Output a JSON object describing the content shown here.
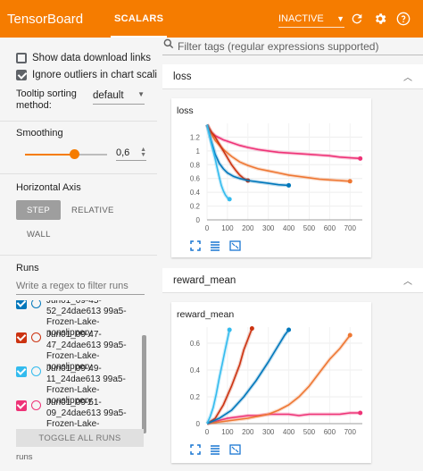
{
  "app": {
    "title": "TensorBoard"
  },
  "tabs": [
    {
      "label": "SCALARS"
    }
  ],
  "header": {
    "status": "INACTIVE",
    "accent": "#f57c00"
  },
  "sidebar": {
    "show_download": "Show data download links",
    "ignore_outliers": "Ignore outliers in chart scaling",
    "tooltip_label": "Tooltip sorting method:",
    "tooltip_value": "default",
    "smoothing_label": "Smoothing",
    "smoothing_value": "0,6",
    "smoothing_fraction": 0.6,
    "horizontal_axis_label": "Horizontal Axis",
    "axis_step": "STEP",
    "axis_relative": "RELATIVE",
    "axis_wall": "WALL",
    "runs_label": "Runs",
    "runs_filter_placeholder": "Write a regex to filter runs",
    "runs": [
      {
        "name": "Jun01_09-45-52_24dae613 99a5-Frozen-Lake-nonslippery",
        "color": "#0077bb",
        "checked": true
      },
      {
        "name": "Jun01_09-47-47_24dae613 99a5-Frozen-Lake-nonslippery",
        "color": "#cc3311",
        "checked": true
      },
      {
        "name": "Jun01_09-49-11_24dae613 99a5-Frozen-Lake-nonslippery",
        "color": "#33bbee",
        "checked": true
      },
      {
        "name": "Jun01_09-51-09_24dae613 99a5-Frozen-Lake-nonslippery",
        "color": "#ee3377",
        "checked": true
      }
    ],
    "toggle_all": "TOGGLE ALL RUNS",
    "runs_footer": "runs"
  },
  "main": {
    "search_placeholder": "Filter tags (regular expressions supported)",
    "categories": [
      {
        "label": "loss"
      },
      {
        "label": "reward_mean"
      }
    ]
  },
  "chart_data": [
    {
      "type": "line",
      "title": "loss",
      "xlabel": "",
      "ylabel": "",
      "xticks": [
        "0",
        "100",
        "200",
        "300",
        "400",
        "500",
        "600",
        "700"
      ],
      "yticks": [
        "0",
        "0.2",
        "0.4",
        "0.6",
        "0.8",
        "1",
        "1.2"
      ],
      "xlim": [
        0,
        760
      ],
      "ylim": [
        0,
        1.4
      ],
      "series": [
        {
          "color": "#ee3377",
          "x": [
            0,
            20,
            40,
            80,
            120,
            160,
            200,
            250,
            300,
            350,
            400,
            450,
            500,
            550,
            600,
            650,
            700,
            750
          ],
          "y": [
            1.38,
            1.27,
            1.22,
            1.16,
            1.12,
            1.08,
            1.05,
            1.02,
            1.0,
            0.98,
            0.97,
            0.96,
            0.95,
            0.94,
            0.93,
            0.91,
            0.9,
            0.89
          ]
        },
        {
          "color": "#ee7733",
          "x": [
            0,
            20,
            40,
            80,
            120,
            160,
            200,
            250,
            300,
            350,
            400,
            450,
            500,
            550,
            600,
            650,
            700
          ],
          "y": [
            1.38,
            1.25,
            1.15,
            1.02,
            0.92,
            0.84,
            0.79,
            0.74,
            0.71,
            0.68,
            0.65,
            0.63,
            0.61,
            0.59,
            0.58,
            0.57,
            0.56
          ]
        },
        {
          "color": "#cc3311",
          "x": [
            0,
            20,
            40,
            60,
            80,
            100,
            120,
            140,
            160,
            180,
            200
          ],
          "y": [
            1.38,
            1.28,
            1.2,
            1.1,
            1.0,
            0.9,
            0.8,
            0.72,
            0.65,
            0.6,
            0.57
          ]
        },
        {
          "color": "#0077bb",
          "x": [
            0,
            20,
            40,
            60,
            80,
            100,
            130,
            160,
            200,
            250,
            300,
            350,
            400
          ],
          "y": [
            1.38,
            1.15,
            0.95,
            0.82,
            0.74,
            0.68,
            0.63,
            0.6,
            0.57,
            0.55,
            0.53,
            0.51,
            0.5
          ]
        },
        {
          "color": "#33bbee",
          "x": [
            0,
            10,
            20,
            30,
            40,
            50,
            60,
            70,
            80,
            90,
            100,
            110
          ],
          "y": [
            1.38,
            1.25,
            1.12,
            1.0,
            0.88,
            0.75,
            0.62,
            0.5,
            0.42,
            0.36,
            0.32,
            0.3
          ]
        }
      ]
    },
    {
      "type": "line",
      "title": "reward_mean",
      "xlabel": "",
      "ylabel": "",
      "xticks": [
        "0",
        "100",
        "200",
        "300",
        "400",
        "500",
        "600",
        "700"
      ],
      "yticks": [
        "0",
        "0.2",
        "0.4",
        "0.6"
      ],
      "xlim": [
        0,
        760
      ],
      "ylim": [
        0,
        0.72
      ],
      "series": [
        {
          "color": "#ee3377",
          "x": [
            0,
            50,
            100,
            150,
            200,
            250,
            300,
            350,
            400,
            450,
            500,
            550,
            600,
            650,
            700,
            750
          ],
          "y": [
            0.0,
            0.02,
            0.04,
            0.05,
            0.06,
            0.06,
            0.07,
            0.07,
            0.07,
            0.06,
            0.07,
            0.07,
            0.07,
            0.07,
            0.08,
            0.08
          ]
        },
        {
          "color": "#ee7733",
          "x": [
            0,
            100,
            200,
            300,
            350,
            400,
            450,
            500,
            550,
            600,
            650,
            700
          ],
          "y": [
            0.0,
            0.02,
            0.04,
            0.07,
            0.1,
            0.14,
            0.2,
            0.28,
            0.38,
            0.48,
            0.56,
            0.66
          ]
        },
        {
          "color": "#cc3311",
          "x": [
            0,
            40,
            80,
            120,
            160,
            180,
            200,
            220
          ],
          "y": [
            0.0,
            0.04,
            0.14,
            0.28,
            0.44,
            0.55,
            0.63,
            0.71
          ]
        },
        {
          "color": "#0077bb",
          "x": [
            0,
            60,
            120,
            180,
            240,
            300,
            340,
            380,
            400
          ],
          "y": [
            0.0,
            0.04,
            0.1,
            0.2,
            0.32,
            0.46,
            0.56,
            0.66,
            0.7
          ]
        },
        {
          "color": "#33bbee",
          "x": [
            0,
            15,
            30,
            45,
            60,
            75,
            90,
            100,
            110
          ],
          "y": [
            0.0,
            0.05,
            0.12,
            0.22,
            0.34,
            0.45,
            0.56,
            0.63,
            0.7
          ]
        }
      ]
    }
  ]
}
